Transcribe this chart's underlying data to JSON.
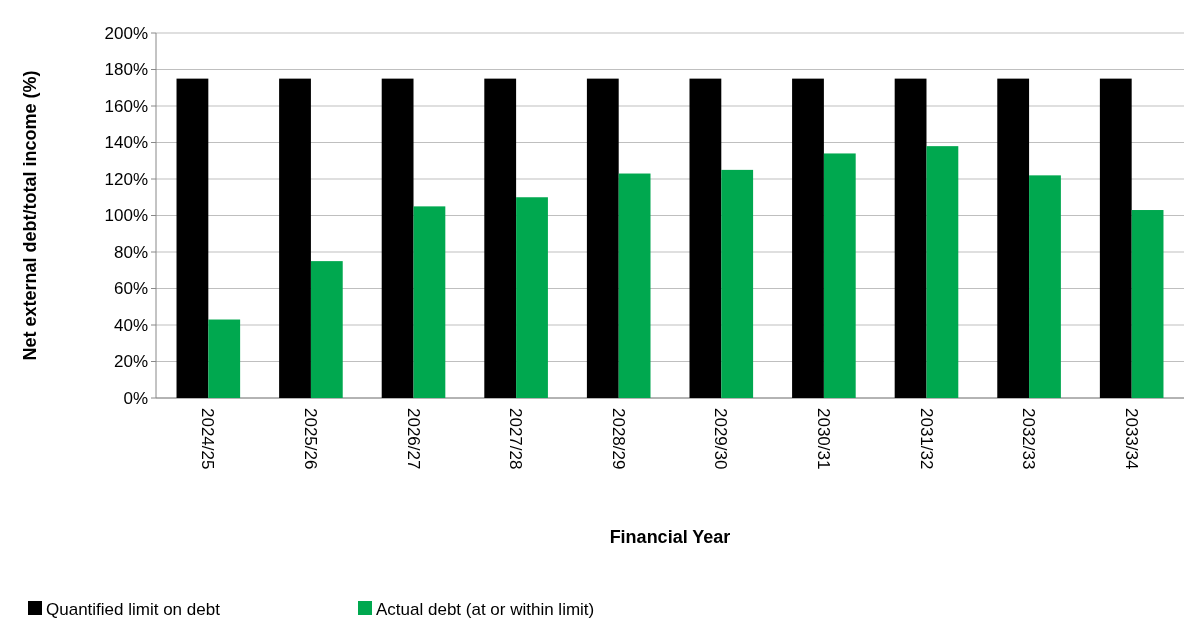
{
  "chart_data": {
    "type": "bar",
    "xlabel": "Financial Year",
    "ylabel": "Net external debt/total income (%)",
    "categories": [
      "2024/25",
      "2025/26",
      "2026/27",
      "2027/28",
      "2028/29",
      "2029/30",
      "2030/31",
      "2031/32",
      "2032/33",
      "2033/34"
    ],
    "series": [
      {
        "name": "Quantified limit on debt",
        "color": "#000000",
        "values": [
          175,
          175,
          175,
          175,
          175,
          175,
          175,
          175,
          175,
          175
        ]
      },
      {
        "name": "Actual debt (at or within limit)",
        "color": "#00a84f",
        "values": [
          43,
          75,
          105,
          110,
          123,
          125,
          134,
          138,
          122,
          103
        ]
      }
    ],
    "ylim": [
      0,
      200
    ],
    "yticks": [
      {
        "value": 0,
        "label": "0%"
      },
      {
        "value": 20,
        "label": "20%"
      },
      {
        "value": 40,
        "label": "40%"
      },
      {
        "value": 60,
        "label": "60%"
      },
      {
        "value": 80,
        "label": "80%"
      },
      {
        "value": 100,
        "label": "100%"
      },
      {
        "value": 120,
        "label": "120%"
      },
      {
        "value": 140,
        "label": "140%"
      },
      {
        "value": 160,
        "label": "160%"
      },
      {
        "value": 180,
        "label": "180%"
      },
      {
        "value": 200,
        "label": "200%"
      }
    ],
    "grid": "y",
    "legend": "bottom left"
  }
}
